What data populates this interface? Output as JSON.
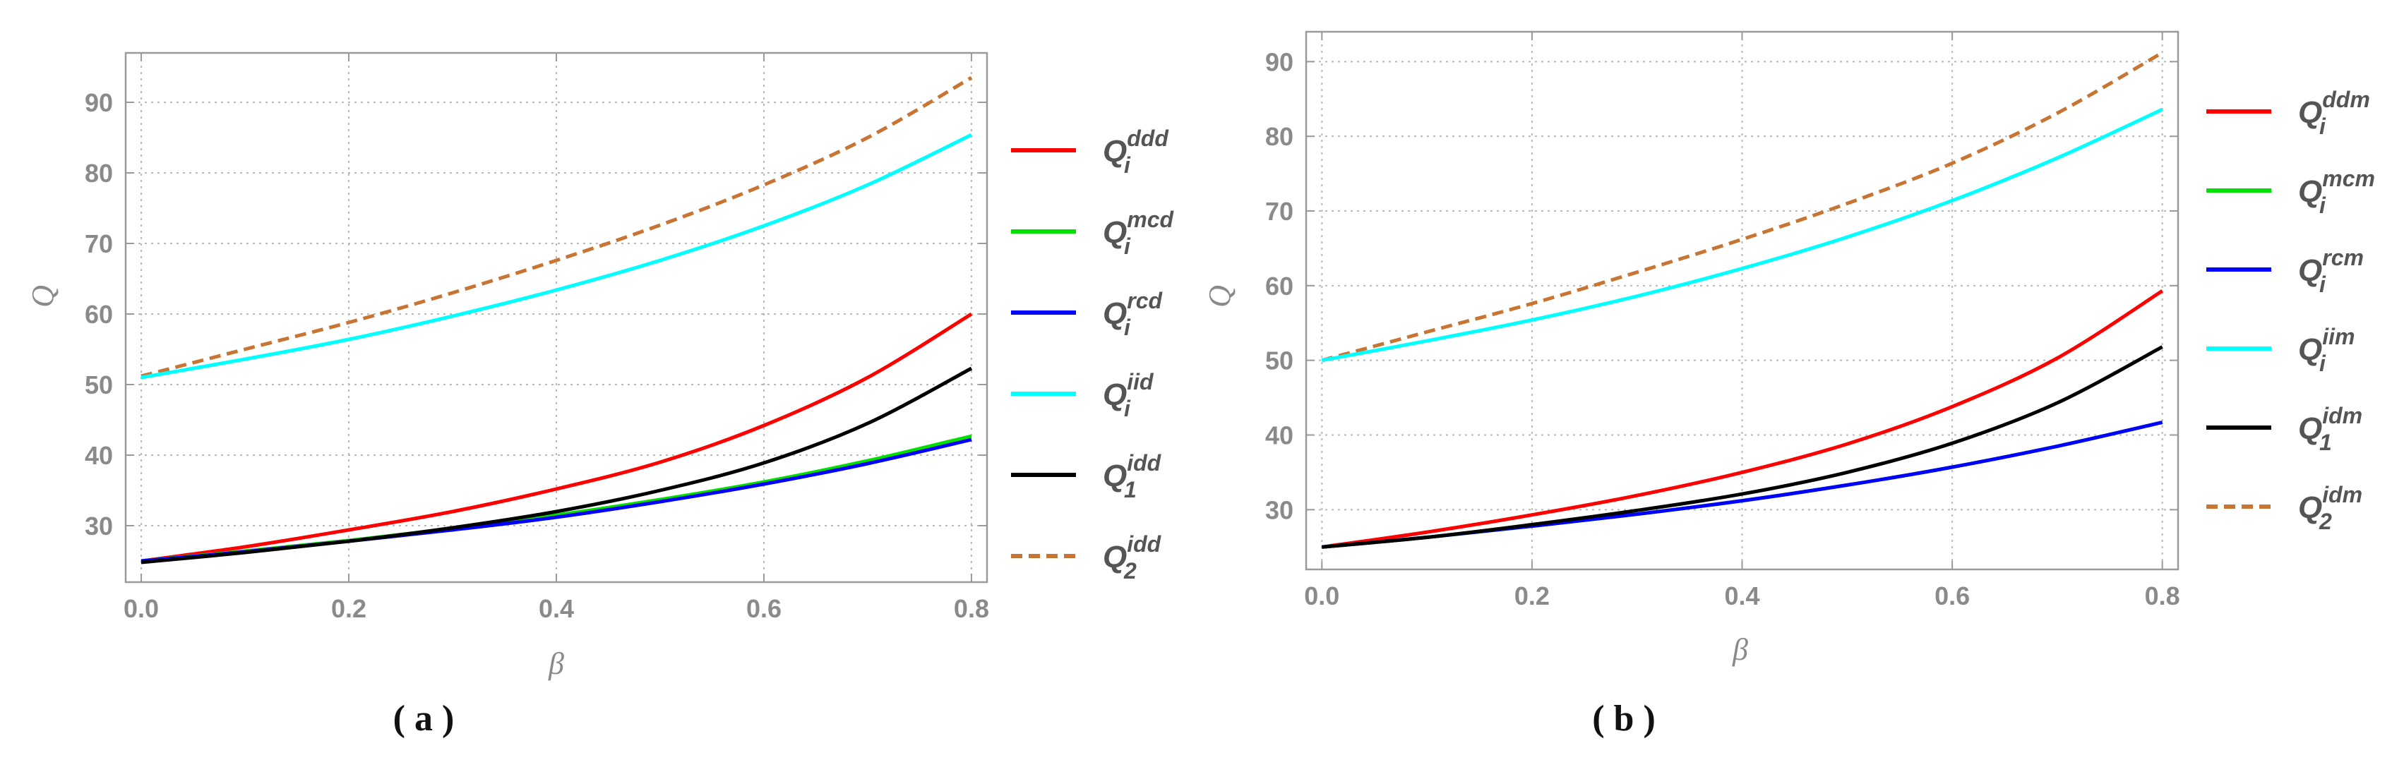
{
  "chart_data": [
    {
      "type": "line",
      "panel": "a",
      "caption": "( a )",
      "xlabel": "β",
      "ylabel": "Q",
      "xlim": [
        -0.015,
        0.815
      ],
      "ylim": [
        22,
        97
      ],
      "xticks": [
        "0.0",
        "0.2",
        "0.4",
        "0.6",
        "0.8"
      ],
      "xtick_values": [
        0,
        0.2,
        0.4,
        0.6,
        0.8
      ],
      "yticks": [
        "30",
        "40",
        "50",
        "60",
        "70",
        "80",
        "90"
      ],
      "ytick_values": [
        30,
        40,
        50,
        60,
        70,
        80,
        90
      ],
      "grid": true,
      "legend_position": "right",
      "x": [
        0,
        0.1,
        0.2,
        0.3,
        0.4,
        0.5,
        0.6,
        0.7,
        0.8
      ],
      "series": [
        {
          "name": "Q_i^ddd",
          "base": "Q",
          "sub": "i",
          "sup": "ddd",
          "color": "#ff0000",
          "dash": false,
          "values": [
            25,
            27,
            29.4,
            32,
            35.2,
            39,
            44.2,
            51,
            60
          ]
        },
        {
          "name": "Q_i^mcd",
          "base": "Q",
          "sub": "i",
          "sup": "mcd",
          "color": "#00e000",
          "dash": false,
          "values": [
            25,
            26.4,
            27.9,
            29.6,
            31.5,
            33.7,
            36.2,
            39.2,
            42.7
          ]
        },
        {
          "name": "Q_i^rcd",
          "base": "Q",
          "sub": "i",
          "sup": "rcd",
          "color": "#0000ff",
          "dash": false,
          "values": [
            25,
            26.3,
            27.8,
            29.4,
            31.2,
            33.4,
            35.9,
            38.8,
            42.2
          ]
        },
        {
          "name": "Q_i^iid",
          "base": "Q",
          "sub": "i",
          "sup": "iid",
          "color": "#00ffff",
          "dash": false,
          "values": [
            51,
            53.6,
            56.4,
            59.7,
            63.4,
            67.6,
            72.5,
            78.3,
            85.4
          ]
        },
        {
          "name": "Q_1^idd",
          "base": "Q",
          "sub": "1",
          "sup": "idd",
          "color": "#000000",
          "dash": false,
          "values": [
            24.8,
            26.2,
            27.8,
            29.7,
            32,
            35,
            38.9,
            44.5,
            52.3
          ]
        },
        {
          "name": "Q_2^idd",
          "base": "Q",
          "sub": "2",
          "sup": "idd",
          "color": "#c87533",
          "dash": true,
          "values": [
            51.2,
            55,
            58.8,
            63,
            67.6,
            72.6,
            78.3,
            85,
            93.5
          ]
        }
      ]
    },
    {
      "type": "line",
      "panel": "b",
      "caption": "( b )",
      "xlabel": "β",
      "ylabel": "Q",
      "xlim": [
        -0.015,
        0.815
      ],
      "ylim": [
        22,
        94
      ],
      "xticks": [
        "0.0",
        "0.2",
        "0.4",
        "0.6",
        "0.8"
      ],
      "xtick_values": [
        0,
        0.2,
        0.4,
        0.6,
        0.8
      ],
      "yticks": [
        "30",
        "40",
        "50",
        "60",
        "70",
        "80",
        "90"
      ],
      "ytick_values": [
        30,
        40,
        50,
        60,
        70,
        80,
        90
      ],
      "grid": true,
      "legend_position": "right",
      "x": [
        0,
        0.1,
        0.2,
        0.3,
        0.4,
        0.5,
        0.6,
        0.7,
        0.8
      ],
      "series": [
        {
          "name": "Q_i^ddm",
          "base": "Q",
          "sub": "i",
          "sup": "ddm",
          "color": "#ff0000",
          "dash": false,
          "values": [
            25,
            27,
            29.3,
            31.9,
            35,
            38.8,
            43.8,
            50.3,
            59.3
          ]
        },
        {
          "name": "Q_i^mcm",
          "base": "Q",
          "sub": "i",
          "sup": "mcm",
          "color": "#00e000",
          "dash": false,
          "values": [
            25,
            26.3,
            27.8,
            29.4,
            31.2,
            33.3,
            35.7,
            38.5,
            41.7
          ]
        },
        {
          "name": "Q_i^rcm",
          "base": "Q",
          "sub": "i",
          "sup": "rcm",
          "color": "#0000ff",
          "dash": false,
          "values": [
            25,
            26.3,
            27.8,
            29.4,
            31.2,
            33.3,
            35.7,
            38.5,
            41.7
          ]
        },
        {
          "name": "Q_i^iim",
          "base": "Q",
          "sub": "i",
          "sup": "iim",
          "color": "#00ffff",
          "dash": false,
          "values": [
            50,
            52.6,
            55.4,
            58.6,
            62.3,
            66.5,
            71.4,
            77.1,
            83.6
          ]
        },
        {
          "name": "Q_1^idm",
          "base": "Q",
          "sub": "1",
          "sup": "idm",
          "color": "#000000",
          "dash": false,
          "values": [
            25,
            26.3,
            28,
            29.9,
            32.1,
            35,
            38.9,
            44.3,
            51.8
          ]
        },
        {
          "name": "Q_2^idm",
          "base": "Q",
          "sub": "2",
          "sup": "idm",
          "color": "#c87533",
          "dash": true,
          "values": [
            50,
            53.8,
            57.6,
            61.8,
            66.2,
            71,
            76.4,
            83.1,
            91.2
          ]
        }
      ]
    }
  ]
}
